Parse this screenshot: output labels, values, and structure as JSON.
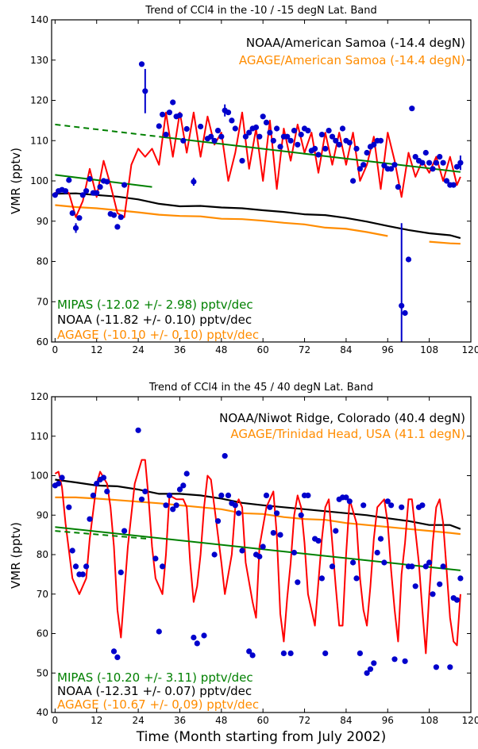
{
  "xlabel": "Time (Month starting from July 2002)",
  "colors": {
    "mipas": "#0000cc",
    "mipas_fit": "#ff0000",
    "trend": "#008000",
    "noaa": "#000000",
    "agage": "#ff8c00"
  },
  "chart_data": [
    {
      "type": "scatter",
      "title": "Trend of CCl4 in the -10 / -15 degN Lat. Band",
      "ylabel": "VMR (pptv)",
      "xlim": [
        -1,
        120
      ],
      "ylim": [
        60,
        140
      ],
      "xticks": [
        0,
        12,
        24,
        36,
        48,
        60,
        72,
        84,
        96,
        108,
        120
      ],
      "yticks": [
        60,
        70,
        80,
        90,
        100,
        110,
        120,
        130,
        140
      ],
      "legend": {
        "noaa_station": "NOAA/American Samoa (-14.4 degN)",
        "agage_station": "AGAGE/American Samoa (-14.4 degN)",
        "mipas_trend": "MIPAS (-12.02 +/- 2.98) pptv/dec",
        "noaa_trend": "NOAA (-11.82 +/- 0.10) pptv/dec",
        "agage_trend": "AGAGE (-10.10 +/- 0.10) pptv/dec"
      },
      "series": [
        {
          "kind": "points",
          "x": [
            0,
            1,
            2,
            3,
            4,
            5,
            6,
            7,
            8,
            9,
            10,
            11,
            12,
            13,
            14,
            15,
            16,
            17,
            18,
            19,
            20,
            25,
            26,
            30,
            31,
            32,
            33,
            34,
            35,
            36,
            37,
            38,
            40,
            42,
            44,
            45,
            46,
            47,
            48,
            49,
            50,
            51,
            52,
            54,
            55,
            56,
            57,
            58,
            59,
            60,
            61,
            62,
            63,
            64,
            65,
            66,
            67,
            68,
            69,
            70,
            71,
            72,
            73,
            74,
            75,
            76,
            77,
            78,
            79,
            80,
            81,
            82,
            83,
            84,
            85,
            86,
            87,
            88,
            89,
            90,
            91,
            92,
            93,
            94,
            95,
            96,
            97,
            98,
            99,
            100,
            101,
            102,
            103,
            104,
            105,
            106,
            107,
            108,
            109,
            110,
            111,
            112,
            113,
            114,
            115,
            116,
            117
          ],
          "y": [
            96.5,
            97.5,
            97.8,
            97.5,
            100.2,
            92,
            88.3,
            90.8,
            96.5,
            97.5,
            100.5,
            97,
            97,
            98.5,
            100,
            99.8,
            91.8,
            91.5,
            88.6,
            91,
            99,
            129,
            122.3,
            113.6,
            116.5,
            111.5,
            117,
            119.5,
            116,
            116.3,
            110,
            112.9,
            99.8,
            113.5,
            110.5,
            111,
            110,
            112.5,
            111,
            117.5,
            117,
            115,
            113,
            105,
            111,
            112,
            113,
            113.3,
            111,
            116,
            114.5,
            112,
            110,
            113,
            108.5,
            111,
            111,
            110,
            112.5,
            109,
            111.5,
            113,
            112.5,
            107.5,
            108,
            106.5,
            111.5,
            108,
            112.5,
            111,
            110,
            109,
            113,
            110,
            109.5,
            100,
            108,
            103,
            104,
            107,
            108.5,
            109,
            110,
            110,
            103.8,
            103,
            103,
            104,
            98.5,
            69,
            67.2,
            80.5,
            118,
            106,
            105,
            104.5,
            107,
            104.5,
            103,
            104.5,
            106,
            104.5,
            100,
            99,
            99,
            103.5,
            104.5
          ],
          "error_bars": [
            {
              "x": 6,
              "y": 88.3,
              "err": 1.2
            },
            {
              "x": 25,
              "y": 129,
              "err": 0.5
            },
            {
              "x": 26,
              "y": 122.3,
              "err": 5.5
            },
            {
              "x": 40,
              "y": 99.8,
              "err": 1
            },
            {
              "x": 49,
              "y": 117.5,
              "err": 1.5
            },
            {
              "x": 100,
              "y": 69,
              "err": 20.5
            },
            {
              "x": 117,
              "y": 104.5,
              "err": 1.8
            }
          ]
        },
        {
          "kind": "mipas_fit",
          "x": [
            0,
            2,
            4,
            6,
            8,
            10,
            12,
            14,
            16,
            18,
            20,
            22,
            24,
            26,
            28,
            30,
            32,
            34,
            36,
            38,
            40,
            42,
            44,
            46,
            48,
            50,
            52,
            54,
            56,
            58,
            60,
            62,
            64,
            66,
            68,
            70,
            72,
            74,
            76,
            78,
            80,
            82,
            84,
            86,
            88,
            90,
            92,
            94,
            96,
            98,
            100,
            102,
            104,
            106,
            108,
            110,
            112,
            114,
            116,
            117
          ],
          "y": [
            97,
            98,
            97,
            91,
            95,
            103,
            96,
            105,
            99,
            92,
            91,
            104,
            108,
            106,
            108,
            104,
            117,
            106,
            117,
            107,
            117,
            106,
            116,
            109,
            112,
            100,
            107,
            117,
            103,
            113,
            100,
            115,
            98,
            113,
            105,
            114,
            107,
            112,
            102,
            112,
            104,
            112,
            104,
            112,
            100,
            104,
            111,
            98,
            112,
            105,
            96,
            107,
            101,
            105,
            102,
            106,
            100,
            106,
            99,
            101
          ]
        },
        {
          "kind": "noaa",
          "x": [
            0,
            6,
            12,
            18,
            24,
            30,
            36,
            42,
            48,
            54,
            60,
            66,
            72,
            78,
            84,
            90,
            96,
            102,
            108,
            114,
            117
          ],
          "y": [
            96.8,
            96.9,
            96.5,
            96.1,
            95.4,
            94.3,
            93.7,
            93.8,
            93.4,
            93.2,
            92.7,
            92.3,
            91.7,
            91.5,
            90.8,
            89.9,
            88.8,
            87.8,
            87,
            86.5,
            85.8
          ]
        },
        {
          "kind": "agage",
          "x": [
            0,
            6,
            12,
            18,
            24,
            30,
            36,
            42,
            48,
            54,
            60,
            66,
            72,
            78,
            84,
            90,
            96,
            102,
            108,
            114,
            117
          ],
          "y": [
            94,
            93.5,
            93.2,
            92.7,
            92.2,
            91.6,
            91.3,
            91.2,
            90.6,
            90.5,
            90.1,
            89.6,
            89.2,
            88.4,
            88.1,
            87.3,
            86.3,
            85.3,
            84.9,
            84.5,
            84.4
          ],
          "gaps": [
            [
              91,
              93
            ],
            [
              101,
              103
            ]
          ]
        },
        {
          "kind": "trend_dashed",
          "x": [
            0,
            30
          ],
          "y": [
            114,
            111
          ]
        },
        {
          "kind": "trend_solid",
          "x": [
            30,
            117
          ],
          "y": [
            111,
            102.2
          ]
        },
        {
          "kind": "trend_solid",
          "x": [
            0,
            28
          ],
          "y": [
            101.5,
            98.5
          ]
        }
      ]
    },
    {
      "type": "scatter",
      "title": "Trend of CCl4 in the 45 / 40 degN Lat. Band",
      "ylabel": "VMR (pptv)",
      "xlim": [
        -1,
        120
      ],
      "ylim": [
        40,
        120
      ],
      "xticks": [
        0,
        12,
        24,
        36,
        48,
        60,
        72,
        84,
        96,
        108,
        120
      ],
      "yticks": [
        40,
        50,
        60,
        70,
        80,
        90,
        100,
        110,
        120
      ],
      "legend": {
        "noaa_station": "NOAA/Niwot Ridge, Colorado (40.4 degN)",
        "agage_station": "AGAGE/Trinidad Head, USA (41.1 degN)",
        "mipas_trend": "MIPAS (-10.20 +/- 3.11) pptv/dec",
        "noaa_trend": "NOAA (-12.31 +/- 0.07) pptv/dec",
        "agage_trend": "AGAGE (-10.67 +/- 0.09) pptv/dec"
      },
      "series": [
        {
          "kind": "points",
          "x": [
            0,
            1,
            2,
            4,
            5,
            6,
            7,
            8,
            9,
            10,
            11,
            12,
            13,
            14,
            15,
            17,
            18,
            19,
            20,
            24,
            25,
            26,
            29,
            30,
            31,
            32,
            33,
            34,
            35,
            36,
            37,
            38,
            40,
            41,
            43,
            46,
            47,
            48,
            49,
            50,
            51,
            52,
            53,
            54,
            56,
            57,
            58,
            59,
            60,
            61,
            62,
            63,
            64,
            65,
            66,
            68,
            69,
            70,
            71,
            72,
            73,
            75,
            76,
            77,
            78,
            80,
            81,
            82,
            83,
            84,
            85,
            86,
            87,
            88,
            89,
            90,
            91,
            92,
            93,
            94,
            95,
            96,
            97,
            98,
            100,
            101,
            102,
            103,
            104,
            105,
            106,
            107,
            108,
            109,
            110,
            111,
            112,
            114,
            115,
            116,
            117
          ],
          "y": [
            97.5,
            98,
            99.5,
            92,
            81,
            77,
            75,
            75,
            77,
            89,
            95,
            98,
            99,
            99.5,
            96,
            55.5,
            54,
            75.5,
            86,
            111.5,
            94,
            96,
            79,
            60.5,
            77,
            92.5,
            95,
            91.5,
            92.5,
            96.5,
            97.5,
            100.5,
            59,
            57.5,
            59.5,
            80,
            88.5,
            95,
            105,
            95,
            93,
            92.5,
            90.5,
            81,
            55.5,
            54.5,
            80,
            79.5,
            82,
            95,
            92,
            85.5,
            90.5,
            85,
            55,
            55,
            80.5,
            73,
            90,
            95,
            95,
            84,
            83.5,
            74,
            55,
            77,
            86,
            94,
            94.5,
            94.5,
            93.5,
            78,
            74,
            55,
            92.5,
            50,
            51,
            52.5,
            80.5,
            84,
            78,
            93.5,
            92.5,
            53.5,
            92,
            53,
            77,
            77,
            72,
            92,
            92.5,
            77,
            78,
            70,
            51.5,
            72.5,
            77,
            51.5,
            69,
            68.5,
            74
          ]
        },
        {
          "kind": "mipas_fit",
          "x": [
            0,
            1,
            2,
            3,
            5,
            7,
            9,
            10,
            12,
            13,
            15,
            16,
            17,
            18,
            19,
            21,
            23,
            25,
            26,
            27,
            28,
            29,
            31,
            32,
            33,
            35,
            37,
            38,
            39,
            40,
            41,
            42,
            43,
            44,
            45,
            46,
            48,
            49,
            51,
            52,
            53,
            54,
            55,
            57,
            58,
            59,
            61,
            63,
            64,
            65,
            66,
            67,
            68,
            69,
            70,
            71,
            72,
            73,
            75,
            77,
            78,
            79,
            81,
            82,
            83,
            84,
            85,
            87,
            88,
            89,
            90,
            91,
            92,
            93,
            95,
            96,
            97,
            98,
            99,
            100,
            101,
            102,
            103,
            105,
            106,
            107,
            108,
            109,
            110,
            111,
            112,
            113,
            114,
            115,
            116,
            117
          ],
          "y": [
            100.5,
            101,
            97,
            88,
            74,
            70,
            74,
            84,
            98,
            101,
            98,
            92,
            82,
            66,
            59,
            82,
            98,
            104,
            104,
            94,
            82,
            74,
            70,
            80,
            95,
            94,
            94,
            92,
            78,
            68,
            72,
            80,
            92,
            100,
            99,
            92,
            78,
            70,
            80,
            92,
            94,
            92,
            78,
            68,
            64,
            82,
            92,
            96,
            85,
            65,
            58,
            69,
            78,
            90,
            95,
            92,
            83,
            70,
            62,
            84,
            92,
            94,
            72,
            62,
            62,
            80,
            94,
            88,
            74,
            66,
            62,
            72,
            84,
            92,
            94,
            88,
            76,
            66,
            58,
            75,
            83,
            94,
            94,
            78,
            66,
            55,
            70,
            83,
            92,
            94,
            88,
            76,
            64,
            58,
            57,
            70
          ]
        },
        {
          "kind": "noaa",
          "x": [
            0,
            6,
            12,
            18,
            24,
            30,
            36,
            42,
            48,
            54,
            60,
            66,
            72,
            78,
            84,
            90,
            96,
            102,
            108,
            114,
            117
          ],
          "y": [
            99,
            98.3,
            97.5,
            97.3,
            96.5,
            95.4,
            95.4,
            95,
            94.2,
            93.1,
            92.5,
            92,
            91.5,
            91,
            90.5,
            90,
            89.2,
            88.5,
            87.5,
            87.5,
            86.5
          ],
          "gaps": []
        },
        {
          "kind": "agage",
          "x": [
            0,
            6,
            12,
            18,
            24,
            30,
            36,
            42,
            48,
            54,
            60,
            66,
            72,
            78,
            84,
            90,
            96,
            102,
            108,
            114,
            117
          ],
          "y": [
            94.5,
            94.5,
            94.2,
            93.8,
            93.4,
            93,
            92.5,
            92,
            91.5,
            90.5,
            90.3,
            89.5,
            89,
            88.8,
            88,
            87.5,
            87,
            86.5,
            86,
            85.5,
            85.2
          ],
          "gaps": []
        },
        {
          "kind": "trend_dashed",
          "x": [
            0,
            27
          ],
          "y": [
            86,
            84
          ]
        },
        {
          "kind": "trend_solid",
          "x": [
            0,
            117
          ],
          "y": [
            87,
            76
          ]
        }
      ]
    }
  ]
}
